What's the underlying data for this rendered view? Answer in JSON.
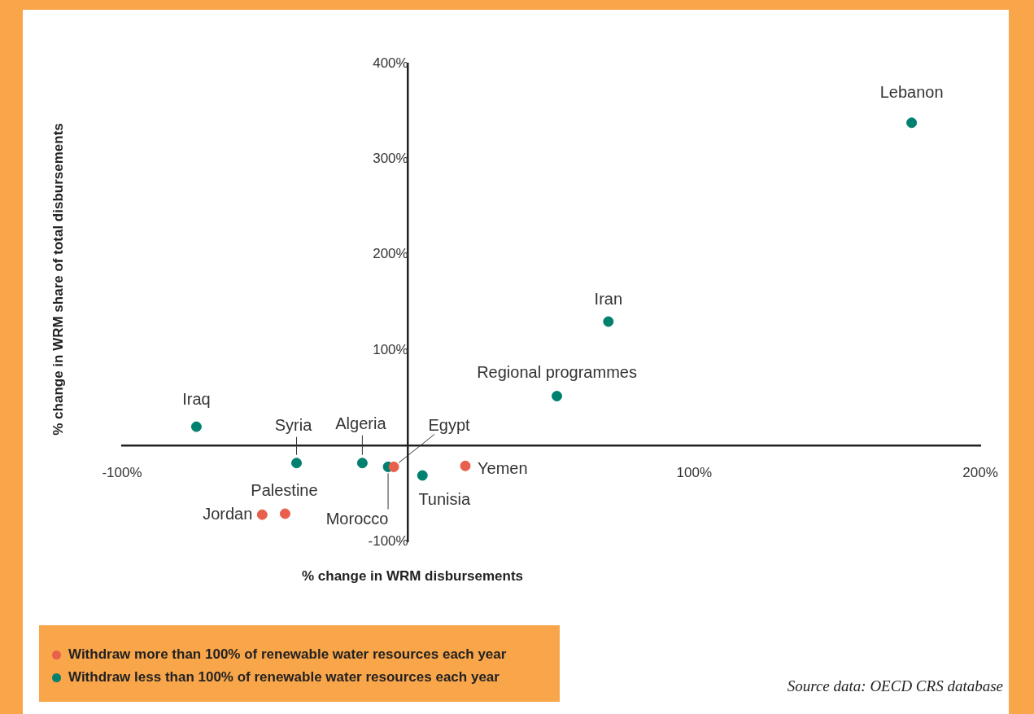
{
  "chart_data": {
    "type": "scatter",
    "xlabel": "% change in WRM disbursements",
    "ylabel": "% change in WRM share of total disbursements",
    "xlim": [
      -100,
      200
    ],
    "ylim": [
      -100,
      400
    ],
    "xticks": [
      {
        "value": -100,
        "label": "-100%"
      },
      {
        "value": 100,
        "label": "100%"
      },
      {
        "value": 200,
        "label": "200%"
      }
    ],
    "yticks": [
      {
        "value": -100,
        "label": "-100%"
      },
      {
        "value": 100,
        "label": "100%"
      },
      {
        "value": 200,
        "label": "200%"
      },
      {
        "value": 300,
        "label": "300%"
      },
      {
        "value": 400,
        "label": "400%"
      }
    ],
    "grid": false,
    "legend": "bottom left",
    "marker": "circle",
    "series": [
      {
        "name": "Withdraw more than 100% of renewable water resources each year",
        "color": "#e8604c",
        "x": [
          -5,
          20,
          -43,
          -51
        ],
        "values": [
          -22,
          -21,
          -71,
          -72
        ]
      },
      {
        "name": "Withdraw less than 100% of renewable water resources each year",
        "color": "#00806e",
        "x": [
          176,
          70,
          52,
          -74,
          -39,
          -16,
          -7,
          5
        ],
        "values": [
          338,
          130,
          52,
          20,
          -18,
          -18,
          -22,
          -31
        ]
      }
    ],
    "annotations": [
      {
        "text": "Lebanon",
        "x": 176,
        "y": 338
      },
      {
        "text": "Iran",
        "x": 70,
        "y": 130
      },
      {
        "text": "Regional programmes",
        "x": 52,
        "y": 52
      },
      {
        "text": "Iraq",
        "x": -74,
        "y": 20
      },
      {
        "text": "Syria",
        "x": -39,
        "y": -18
      },
      {
        "text": "Algeria",
        "x": -16,
        "y": -18
      },
      {
        "text": "Egypt",
        "x": -5,
        "y": -22
      },
      {
        "text": "Morocco",
        "x": -7,
        "y": -22
      },
      {
        "text": "Tunisia",
        "x": 5,
        "y": -31
      },
      {
        "text": "Yemen",
        "x": 20,
        "y": -21
      },
      {
        "text": "Palestine",
        "x": -43,
        "y": -71
      },
      {
        "text": "Jordan",
        "x": -51,
        "y": -72
      },
      "Source data: OECD CRS database"
    ]
  }
}
